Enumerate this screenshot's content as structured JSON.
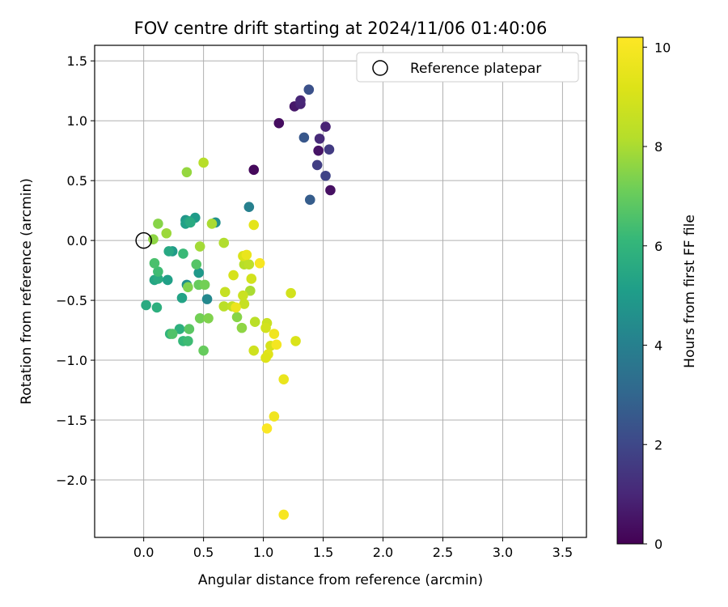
{
  "chart_data": {
    "type": "scatter",
    "title": "FOV centre drift starting at 2024/11/06 01:40:06",
    "xlabel": "Angular distance from reference (arcmin)",
    "ylabel": "Rotation from reference (arcmin)",
    "xlim": [
      -0.41,
      3.7
    ],
    "ylim": [
      -2.48,
      1.63
    ],
    "xticks": [
      0.0,
      0.5,
      1.0,
      1.5,
      2.0,
      2.5,
      3.0,
      3.5
    ],
    "xtick_labels": [
      "0.0",
      "0.5",
      "1.0",
      "1.5",
      "2.0",
      "2.5",
      "3.0",
      "3.5"
    ],
    "yticks": [
      -2.0,
      -1.5,
      -1.0,
      -0.5,
      0.0,
      0.5,
      1.0,
      1.5
    ],
    "ytick_labels": [
      "−2.0",
      "−1.5",
      "−1.0",
      "−0.5",
      "0.0",
      "0.5",
      "1.0",
      "1.5"
    ],
    "grid": true,
    "legend": {
      "placement": "top-right",
      "entries": [
        "Reference platepar"
      ]
    },
    "reference_point": {
      "x": 0.0,
      "y": 0.0,
      "marker": "open-circle"
    },
    "colormap": "viridis",
    "colorbar": {
      "label": "Hours from first FF file",
      "range": [
        0,
        10.2
      ],
      "ticks": [
        0,
        2,
        4,
        6,
        8,
        10
      ],
      "tick_labels": [
        "0",
        "2",
        "4",
        "6",
        "8",
        "10"
      ]
    },
    "points": [
      {
        "x": 1.13,
        "y": 0.98,
        "h": 0.3
      },
      {
        "x": 0.92,
        "y": 0.59,
        "h": 0.2
      },
      {
        "x": 1.26,
        "y": 1.12,
        "h": 0.6
      },
      {
        "x": 1.31,
        "y": 1.14,
        "h": 0.9
      },
      {
        "x": 1.31,
        "y": 1.17,
        "h": 1.0
      },
      {
        "x": 1.46,
        "y": 0.75,
        "h": 0.5
      },
      {
        "x": 1.56,
        "y": 0.42,
        "h": 0.4
      },
      {
        "x": 1.52,
        "y": 0.95,
        "h": 0.9
      },
      {
        "x": 1.47,
        "y": 0.85,
        "h": 1.1
      },
      {
        "x": 1.55,
        "y": 0.76,
        "h": 1.6
      },
      {
        "x": 1.45,
        "y": 0.63,
        "h": 1.7
      },
      {
        "x": 1.52,
        "y": 0.54,
        "h": 1.9
      },
      {
        "x": 1.38,
        "y": 1.26,
        "h": 2.3
      },
      {
        "x": 1.34,
        "y": 0.86,
        "h": 2.5
      },
      {
        "x": 1.39,
        "y": 0.34,
        "h": 2.7
      },
      {
        "x": 0.88,
        "y": 0.28,
        "h": 4.0
      },
      {
        "x": 0.6,
        "y": 0.15,
        "h": 4.6
      },
      {
        "x": 0.35,
        "y": 0.17,
        "h": 4.8
      },
      {
        "x": 0.43,
        "y": 0.19,
        "h": 5.0
      },
      {
        "x": 0.35,
        "y": 0.14,
        "h": 5.2
      },
      {
        "x": 0.38,
        "y": 0.16,
        "h": 5.4
      },
      {
        "x": 0.39,
        "y": 0.15,
        "h": 5.6
      },
      {
        "x": 0.53,
        "y": -0.49,
        "h": 4.3
      },
      {
        "x": 0.36,
        "y": -0.37,
        "h": 4.6
      },
      {
        "x": 0.46,
        "y": -0.27,
        "h": 4.9
      },
      {
        "x": 0.24,
        "y": -0.09,
        "h": 5.0
      },
      {
        "x": 0.32,
        "y": -0.48,
        "h": 5.3
      },
      {
        "x": 0.2,
        "y": -0.33,
        "h": 5.2
      },
      {
        "x": 0.09,
        "y": -0.33,
        "h": 5.4
      },
      {
        "x": 0.12,
        "y": -0.32,
        "h": 5.6
      },
      {
        "x": 0.02,
        "y": -0.54,
        "h": 5.6
      },
      {
        "x": 0.22,
        "y": -0.78,
        "h": 6.0
      },
      {
        "x": 0.3,
        "y": -0.74,
        "h": 5.8
      },
      {
        "x": 0.33,
        "y": -0.84,
        "h": 6.1
      },
      {
        "x": 0.37,
        "y": -0.84,
        "h": 6.3
      },
      {
        "x": 0.21,
        "y": -0.09,
        "h": 5.5
      },
      {
        "x": 0.33,
        "y": -0.11,
        "h": 6.2
      },
      {
        "x": 0.12,
        "y": -0.26,
        "h": 6.3
      },
      {
        "x": 0.09,
        "y": -0.19,
        "h": 6.5
      },
      {
        "x": 0.11,
        "y": -0.56,
        "h": 5.8
      },
      {
        "x": 0.44,
        "y": -0.2,
        "h": 6.7
      },
      {
        "x": 0.24,
        "y": -0.78,
        "h": 6.6
      },
      {
        "x": 0.38,
        "y": -0.74,
        "h": 6.8
      },
      {
        "x": 0.5,
        "y": -0.92,
        "h": 7.0
      },
      {
        "x": 0.46,
        "y": -0.37,
        "h": 7.0
      },
      {
        "x": 0.51,
        "y": -0.37,
        "h": 7.2
      },
      {
        "x": 0.37,
        "y": -0.39,
        "h": 7.4
      },
      {
        "x": 0.47,
        "y": -0.65,
        "h": 7.2
      },
      {
        "x": 0.54,
        "y": -0.65,
        "h": 7.4
      },
      {
        "x": 0.08,
        "y": 0.01,
        "h": 7.6
      },
      {
        "x": 0.12,
        "y": 0.14,
        "h": 7.5
      },
      {
        "x": 0.19,
        "y": 0.06,
        "h": 7.8
      },
      {
        "x": 0.36,
        "y": 0.57,
        "h": 7.7
      },
      {
        "x": 0.5,
        "y": 0.65,
        "h": 8.2
      },
      {
        "x": 0.57,
        "y": 0.14,
        "h": 8.0
      },
      {
        "x": 0.47,
        "y": -0.05,
        "h": 7.9
      },
      {
        "x": 0.67,
        "y": -0.02,
        "h": 8.1
      },
      {
        "x": 0.78,
        "y": -0.64,
        "h": 7.5
      },
      {
        "x": 0.82,
        "y": -0.73,
        "h": 7.6
      },
      {
        "x": 0.84,
        "y": -0.2,
        "h": 8.2
      },
      {
        "x": 0.88,
        "y": -0.2,
        "h": 8.4
      },
      {
        "x": 0.89,
        "y": -0.42,
        "h": 8.0
      },
      {
        "x": 0.67,
        "y": -0.55,
        "h": 8.3
      },
      {
        "x": 0.74,
        "y": -0.55,
        "h": 8.5
      },
      {
        "x": 0.84,
        "y": -0.53,
        "h": 8.6
      },
      {
        "x": 0.68,
        "y": -0.43,
        "h": 8.6
      },
      {
        "x": 0.83,
        "y": -0.46,
        "h": 8.7
      },
      {
        "x": 0.93,
        "y": -0.68,
        "h": 8.3
      },
      {
        "x": 0.92,
        "y": -0.92,
        "h": 8.8
      },
      {
        "x": 1.03,
        "y": -0.69,
        "h": 8.7
      },
      {
        "x": 1.02,
        "y": -0.73,
        "h": 8.9
      },
      {
        "x": 1.06,
        "y": -0.88,
        "h": 9.0
      },
      {
        "x": 1.04,
        "y": -0.95,
        "h": 9.3
      },
      {
        "x": 1.02,
        "y": -0.98,
        "h": 9.2
      },
      {
        "x": 1.23,
        "y": -0.44,
        "h": 8.9
      },
      {
        "x": 1.27,
        "y": -0.84,
        "h": 9.1
      },
      {
        "x": 0.9,
        "y": -0.32,
        "h": 8.9
      },
      {
        "x": 0.75,
        "y": -0.29,
        "h": 9.0
      },
      {
        "x": 0.83,
        "y": -0.13,
        "h": 9.1
      },
      {
        "x": 0.92,
        "y": 0.13,
        "h": 9.4
      },
      {
        "x": 0.86,
        "y": -0.12,
        "h": 9.6
      },
      {
        "x": 0.97,
        "y": -0.19,
        "h": 10.0
      },
      {
        "x": 0.77,
        "y": -0.56,
        "h": 9.7
      },
      {
        "x": 1.09,
        "y": -0.78,
        "h": 9.8
      },
      {
        "x": 1.11,
        "y": -0.87,
        "h": 9.9
      },
      {
        "x": 1.17,
        "y": -1.16,
        "h": 9.6
      },
      {
        "x": 1.09,
        "y": -1.47,
        "h": 9.8
      },
      {
        "x": 1.03,
        "y": -1.57,
        "h": 10.1
      },
      {
        "x": 1.17,
        "y": -2.29,
        "h": 10.0
      }
    ]
  }
}
